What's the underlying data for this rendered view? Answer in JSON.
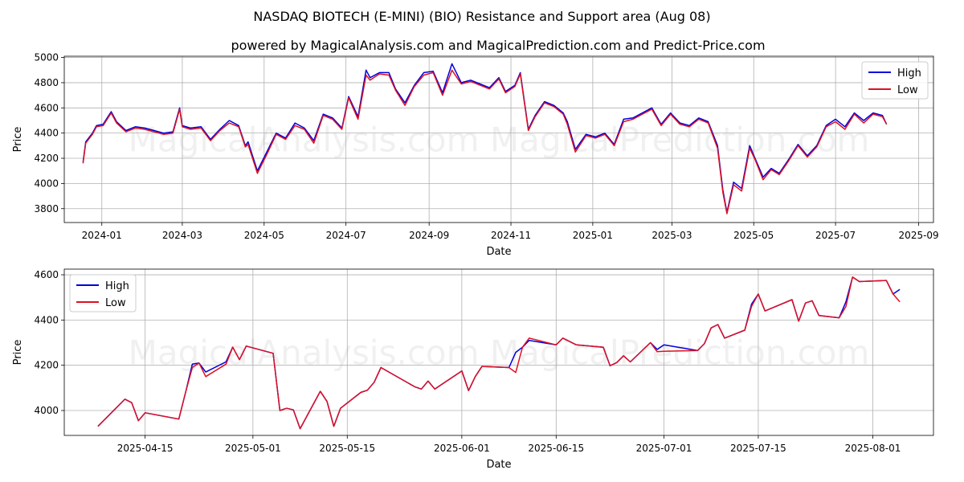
{
  "title": "NASDAQ BIOTECH (E-MINI) (BIO) Resistance and Support area (Aug 08)",
  "subtitle": "powered by MagicalAnalysis.com and MagicalPrediction.com and Predict-Price.com",
  "watermark": "MagicalAnalysis.com    MagicalPrediction.com",
  "colors": {
    "high": "#0000dd",
    "low": "#dd1122",
    "grid": "#b0b0b0"
  },
  "chart_data": [
    {
      "type": "line",
      "xlabel": "Date",
      "ylabel": "Price",
      "xlim": [
        "2023-12-04",
        "2025-09-12"
      ],
      "ylim": [
        3690,
        5010
      ],
      "xticks": [
        "2024-01",
        "2024-03",
        "2024-05",
        "2024-07",
        "2024-09",
        "2024-11",
        "2025-01",
        "2025-03",
        "2025-05",
        "2025-07",
        "2025-09"
      ],
      "xtick_dates": [
        "2024-01-01",
        "2024-03-01",
        "2024-05-01",
        "2024-07-01",
        "2024-09-01",
        "2024-11-01",
        "2025-01-01",
        "2025-03-01",
        "2025-05-01",
        "2025-07-01",
        "2025-09-01"
      ],
      "yticks": [
        3800,
        4000,
        4200,
        4400,
        4600,
        4800,
        5000
      ],
      "legend": "top-right",
      "grid": true,
      "x": [
        "2023-12-18",
        "2023-12-20",
        "2023-12-25",
        "2023-12-28",
        "2024-01-02",
        "2024-01-08",
        "2024-01-12",
        "2024-01-19",
        "2024-01-26",
        "2024-02-02",
        "2024-02-09",
        "2024-02-16",
        "2024-02-23",
        "2024-02-28",
        "2024-03-01",
        "2024-03-07",
        "2024-03-15",
        "2024-03-22",
        "2024-03-29",
        "2024-04-05",
        "2024-04-12",
        "2024-04-17",
        "2024-04-19",
        "2024-04-26",
        "2024-05-03",
        "2024-05-10",
        "2024-05-17",
        "2024-05-24",
        "2024-05-31",
        "2024-06-07",
        "2024-06-14",
        "2024-06-21",
        "2024-06-28",
        "2024-07-03",
        "2024-07-10",
        "2024-07-16",
        "2024-07-19",
        "2024-07-26",
        "2024-08-02",
        "2024-08-07",
        "2024-08-14",
        "2024-08-21",
        "2024-08-28",
        "2024-09-04",
        "2024-09-11",
        "2024-09-18",
        "2024-09-25",
        "2024-10-02",
        "2024-10-09",
        "2024-10-16",
        "2024-10-23",
        "2024-10-28",
        "2024-11-04",
        "2024-11-08",
        "2024-11-14",
        "2024-11-19",
        "2024-11-26",
        "2024-12-03",
        "2024-12-10",
        "2024-12-13",
        "2024-12-19",
        "2024-12-27",
        "2025-01-03",
        "2025-01-10",
        "2025-01-17",
        "2025-01-24",
        "2025-01-31",
        "2025-02-07",
        "2025-02-14",
        "2025-02-21",
        "2025-02-28",
        "2025-03-07",
        "2025-03-14",
        "2025-03-21",
        "2025-03-28",
        "2025-04-04",
        "2025-04-08",
        "2025-04-11",
        "2025-04-16",
        "2025-04-22",
        "2025-04-28",
        "2025-05-02",
        "2025-05-08",
        "2025-05-14",
        "2025-05-20",
        "2025-05-27",
        "2025-06-03",
        "2025-06-10",
        "2025-06-17",
        "2025-06-24",
        "2025-07-01",
        "2025-07-08",
        "2025-07-15",
        "2025-07-22",
        "2025-07-29",
        "2025-08-05",
        "2025-08-08"
      ],
      "series": [
        {
          "name": "High",
          "values": [
            4170,
            4330,
            4400,
            4460,
            4470,
            4570,
            4490,
            4420,
            4450,
            4440,
            4420,
            4400,
            4410,
            4600,
            4460,
            4440,
            4450,
            4350,
            4430,
            4500,
            4460,
            4300,
            4330,
            4100,
            4250,
            4400,
            4360,
            4480,
            4440,
            4340,
            4550,
            4520,
            4440,
            4690,
            4530,
            4900,
            4840,
            4880,
            4880,
            4750,
            4640,
            4780,
            4880,
            4890,
            4720,
            4950,
            4800,
            4820,
            4790,
            4760,
            4840,
            4730,
            4780,
            4880,
            4430,
            4540,
            4650,
            4620,
            4560,
            4490,
            4270,
            4390,
            4370,
            4400,
            4310,
            4510,
            4520,
            4560,
            4600,
            4470,
            4560,
            4480,
            4460,
            4520,
            4490,
            4300,
            3950,
            3770,
            4010,
            3960,
            4300,
            4200,
            4050,
            4120,
            4080,
            4190,
            4310,
            4220,
            4300,
            4460,
            4510,
            4450,
            4560,
            4500,
            4560,
            4540,
            4470
          ]
        },
        {
          "name": "Low",
          "values": [
            4160,
            4320,
            4390,
            4450,
            4460,
            4560,
            4480,
            4410,
            4440,
            4430,
            4410,
            4390,
            4400,
            4590,
            4450,
            4430,
            4440,
            4340,
            4420,
            4480,
            4450,
            4290,
            4310,
            4080,
            4230,
            4390,
            4350,
            4460,
            4430,
            4320,
            4540,
            4510,
            4430,
            4680,
            4510,
            4860,
            4820,
            4870,
            4860,
            4740,
            4620,
            4770,
            4860,
            4880,
            4700,
            4900,
            4790,
            4810,
            4780,
            4750,
            4830,
            4720,
            4770,
            4870,
            4420,
            4530,
            4640,
            4610,
            4550,
            4470,
            4250,
            4380,
            4360,
            4390,
            4300,
            4490,
            4510,
            4550,
            4590,
            4460,
            4550,
            4470,
            4450,
            4510,
            4480,
            4280,
            3930,
            3760,
            3990,
            3940,
            4280,
            4190,
            4030,
            4110,
            4070,
            4180,
            4300,
            4210,
            4290,
            4450,
            4490,
            4430,
            4550,
            4480,
            4550,
            4530,
            4470
          ]
        }
      ]
    },
    {
      "type": "line",
      "xlabel": "Date",
      "ylabel": "Price",
      "xlim": [
        "2025-04-03",
        "2025-08-10"
      ],
      "ylim": [
        3890,
        4625
      ],
      "xticks": [
        "2025-04-15",
        "2025-05-01",
        "2025-05-15",
        "2025-06-01",
        "2025-06-15",
        "2025-07-01",
        "2025-07-15",
        "2025-08-01"
      ],
      "xtick_dates": [
        "2025-04-15",
        "2025-05-01",
        "2025-05-15",
        "2025-06-01",
        "2025-06-15",
        "2025-07-01",
        "2025-07-15",
        "2025-08-01"
      ],
      "yticks": [
        4000,
        4200,
        4400,
        4600
      ],
      "legend": "top-left",
      "grid": true,
      "x": [
        "2025-04-08",
        "2025-04-12",
        "2025-04-13",
        "2025-04-14",
        "2025-04-15",
        "2025-04-20",
        "2025-04-21",
        "2025-04-22",
        "2025-04-23",
        "2025-04-24",
        "2025-04-27",
        "2025-04-28",
        "2025-04-29",
        "2025-04-30",
        "2025-05-04",
        "2025-05-05",
        "2025-05-06",
        "2025-05-07",
        "2025-05-08",
        "2025-05-11",
        "2025-05-12",
        "2025-05-13",
        "2025-05-14",
        "2025-05-17",
        "2025-05-18",
        "2025-05-19",
        "2025-05-20",
        "2025-05-25",
        "2025-05-26",
        "2025-05-27",
        "2025-05-28",
        "2025-06-01",
        "2025-06-02",
        "2025-06-03",
        "2025-06-04",
        "2025-06-08",
        "2025-06-09",
        "2025-06-10",
        "2025-06-11",
        "2025-06-15",
        "2025-06-16",
        "2025-06-18",
        "2025-06-22",
        "2025-06-23",
        "2025-06-24",
        "2025-06-25",
        "2025-06-26",
        "2025-06-29",
        "2025-06-30",
        "2025-07-01",
        "2025-07-06",
        "2025-07-07",
        "2025-07-08",
        "2025-07-09",
        "2025-07-10",
        "2025-07-13",
        "2025-07-14",
        "2025-07-15",
        "2025-07-16",
        "2025-07-20",
        "2025-07-21",
        "2025-07-22",
        "2025-07-23",
        "2025-07-24",
        "2025-07-27",
        "2025-07-28",
        "2025-07-29",
        "2025-07-30",
        "2025-08-03",
        "2025-08-04",
        "2025-08-05"
      ],
      "series": [
        {
          "name": "High",
          "values": [
            3930,
            4050,
            4035,
            3955,
            3990,
            3962,
            4080,
            4205,
            4210,
            4170,
            4215,
            4280,
            4225,
            4285,
            4253,
            4000,
            4010,
            4003,
            3920,
            4085,
            4040,
            3930,
            4010,
            4080,
            4090,
            4125,
            4190,
            4105,
            4095,
            4130,
            4095,
            4175,
            4088,
            4150,
            4195,
            4190,
            4257,
            4280,
            4310,
            4290,
            4320,
            4290,
            4280,
            4198,
            4212,
            4242,
            4215,
            4300,
            4270,
            4290,
            4265,
            4295,
            4365,
            4380,
            4320,
            4355,
            4470,
            4515,
            4440,
            4490,
            4395,
            4475,
            4485,
            4420,
            4410,
            4480,
            4590,
            4570,
            4575,
            4515,
            4535
          ]
        },
        {
          "name": "Low",
          "values": [
            3930,
            4050,
            4035,
            3955,
            3990,
            3962,
            4080,
            4190,
            4210,
            4150,
            4205,
            4280,
            4225,
            4285,
            4253,
            4000,
            4010,
            4003,
            3920,
            4085,
            4040,
            3930,
            4010,
            4080,
            4090,
            4125,
            4190,
            4105,
            4095,
            4130,
            4095,
            4175,
            4088,
            4150,
            4195,
            4190,
            4168,
            4280,
            4320,
            4290,
            4320,
            4290,
            4280,
            4198,
            4212,
            4242,
            4215,
            4300,
            4260,
            4262,
            4265,
            4295,
            4365,
            4380,
            4320,
            4355,
            4460,
            4515,
            4440,
            4490,
            4395,
            4475,
            4485,
            4420,
            4410,
            4460,
            4590,
            4570,
            4575,
            4515,
            4480
          ]
        }
      ]
    }
  ]
}
